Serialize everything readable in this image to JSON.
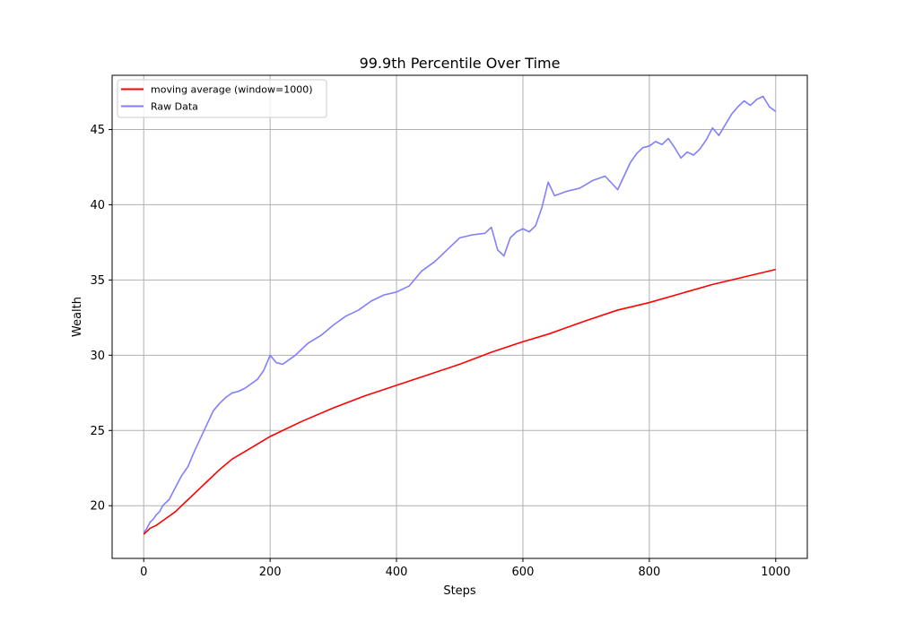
{
  "chart_data": {
    "type": "line",
    "title": "99.9th Percentile Over Time",
    "xlabel": "Steps",
    "ylabel": "Wealth",
    "xlim": [
      -50,
      1050
    ],
    "ylim": [
      16.5,
      48.6
    ],
    "xticks": [
      0,
      200,
      400,
      600,
      800,
      1000
    ],
    "yticks": [
      20,
      25,
      30,
      35,
      40,
      45
    ],
    "grid": true,
    "legend_position": "upper-left",
    "series": [
      {
        "name": "moving average (window=1000)",
        "color": "#ff0000",
        "x": [
          0,
          10,
          20,
          30,
          40,
          50,
          60,
          70,
          80,
          90,
          100,
          120,
          140,
          160,
          180,
          200,
          220,
          250,
          300,
          350,
          400,
          450,
          500,
          550,
          600,
          640,
          700,
          750,
          800,
          850,
          900,
          950,
          1000
        ],
        "y": [
          18.1,
          18.5,
          18.7,
          19.0,
          19.3,
          19.6,
          20.0,
          20.4,
          20.8,
          21.2,
          21.6,
          22.4,
          23.1,
          23.6,
          24.1,
          24.6,
          25.0,
          25.6,
          26.5,
          27.3,
          28.0,
          28.7,
          29.4,
          30.2,
          30.9,
          31.4,
          32.3,
          33.0,
          33.5,
          34.1,
          34.7,
          35.2,
          35.7
        ]
      },
      {
        "name": "Raw Data",
        "color": "#7f7fff",
        "x": [
          0,
          5,
          10,
          15,
          20,
          25,
          30,
          40,
          50,
          60,
          70,
          80,
          90,
          100,
          110,
          120,
          130,
          140,
          150,
          160,
          170,
          180,
          190,
          200,
          210,
          220,
          240,
          260,
          280,
          300,
          320,
          340,
          360,
          380,
          400,
          420,
          440,
          460,
          480,
          500,
          520,
          540,
          550,
          560,
          570,
          580,
          590,
          600,
          610,
          620,
          630,
          640,
          650,
          670,
          690,
          710,
          730,
          750,
          770,
          780,
          790,
          800,
          810,
          820,
          830,
          840,
          850,
          860,
          870,
          880,
          890,
          900,
          910,
          920,
          930,
          940,
          950,
          960,
          970,
          980,
          990,
          1000
        ],
        "y": [
          18.2,
          18.5,
          18.9,
          19.1,
          19.4,
          19.6,
          20.0,
          20.4,
          21.2,
          22.0,
          22.6,
          23.6,
          24.5,
          25.4,
          26.3,
          26.8,
          27.2,
          27.5,
          27.6,
          27.8,
          28.1,
          28.4,
          29.0,
          30.0,
          29.5,
          29.4,
          30.0,
          30.8,
          31.3,
          32.0,
          32.6,
          33.0,
          33.6,
          34.0,
          34.2,
          34.6,
          35.6,
          36.2,
          37.0,
          37.8,
          38.0,
          38.1,
          38.5,
          37.0,
          36.6,
          37.8,
          38.2,
          38.4,
          38.2,
          38.6,
          39.8,
          41.5,
          40.6,
          40.9,
          41.1,
          41.6,
          41.9,
          41.0,
          42.8,
          43.4,
          43.8,
          43.9,
          44.2,
          44.0,
          44.4,
          43.8,
          43.1,
          43.5,
          43.3,
          43.7,
          44.3,
          45.1,
          44.6,
          45.3,
          46.0,
          46.5,
          46.9,
          46.6,
          47.0,
          47.2,
          46.5,
          46.2
        ]
      }
    ]
  }
}
